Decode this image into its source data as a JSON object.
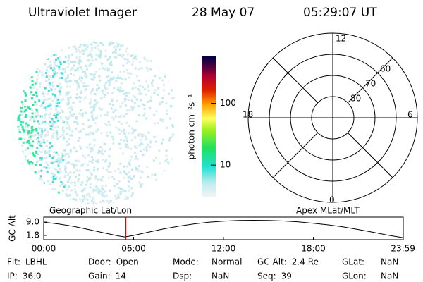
{
  "header": {
    "title": "Ultraviolet Imager",
    "date": "28 May 07",
    "time": "05:29:07 UT"
  },
  "colorbar": {
    "label": "photon cm⁻²s⁻¹",
    "lim": [
      3,
      575
    ],
    "ticks": [
      10,
      100
    ],
    "log": true
  },
  "polar": {
    "lat_lim": [
      90,
      50
    ],
    "rings": [
      60,
      70,
      80
    ],
    "mlt_labels": [
      "12",
      "18",
      "6",
      "0"
    ]
  },
  "chart_data": {
    "type": "line",
    "y_label": "GC Alt",
    "left_label": "Geographic Lat/Lon",
    "right_label": "Apex MLat/MLT",
    "x": [
      0,
      1,
      2,
      3,
      4,
      5,
      5.4,
      6,
      7,
      8,
      9,
      10,
      11,
      12,
      13,
      14,
      15,
      16,
      17,
      18,
      19,
      20,
      21,
      22,
      23,
      23.98
    ],
    "series": [
      {
        "name": "GC Alt",
        "color": "#000000",
        "values": [
          9.0,
          8.0,
          6.7,
          5.0,
          3.2,
          1.5,
          1.0,
          1.8,
          3.6,
          5.3,
          6.8,
          8.0,
          8.9,
          9.5,
          9.9,
          10.0,
          9.9,
          9.6,
          9.1,
          8.4,
          7.5,
          6.4,
          5.0,
          3.5,
          1.9,
          0.6
        ]
      }
    ],
    "marker_x": 5.485,
    "marker_color": "#e00000",
    "xlim": [
      0,
      24
    ],
    "ylim": [
      -0.5,
      11.7
    ],
    "xticks": [
      {
        "value": 0,
        "label": "00:00"
      },
      {
        "value": 6,
        "label": "06:00"
      },
      {
        "value": 12,
        "label": "12:00"
      },
      {
        "value": 18,
        "label": "18:00"
      },
      {
        "value": 23.983,
        "label": "23:59"
      }
    ],
    "yticks": [
      {
        "value": 1.8,
        "label": "1.8"
      },
      {
        "value": 9,
        "label": "9.0"
      }
    ]
  },
  "footer": [
    [
      {
        "label": "Flt:",
        "value": "LBHL"
      },
      {
        "label": "Door:",
        "value": "Open"
      },
      {
        "label": "Mode:",
        "value": "Normal"
      },
      {
        "label": "GC Alt:",
        "value": "2.4 Re"
      },
      {
        "label": "GLat:",
        "value": "NaN"
      }
    ],
    [
      {
        "label": "IP:",
        "value": "36.0"
      },
      {
        "label": "Gain:",
        "value": "14"
      },
      {
        "label": "Dsp:",
        "value": "NaN"
      },
      {
        "label": "Seq:",
        "value": "39"
      },
      {
        "label": "GLon:",
        "value": "NaN"
      }
    ]
  ]
}
